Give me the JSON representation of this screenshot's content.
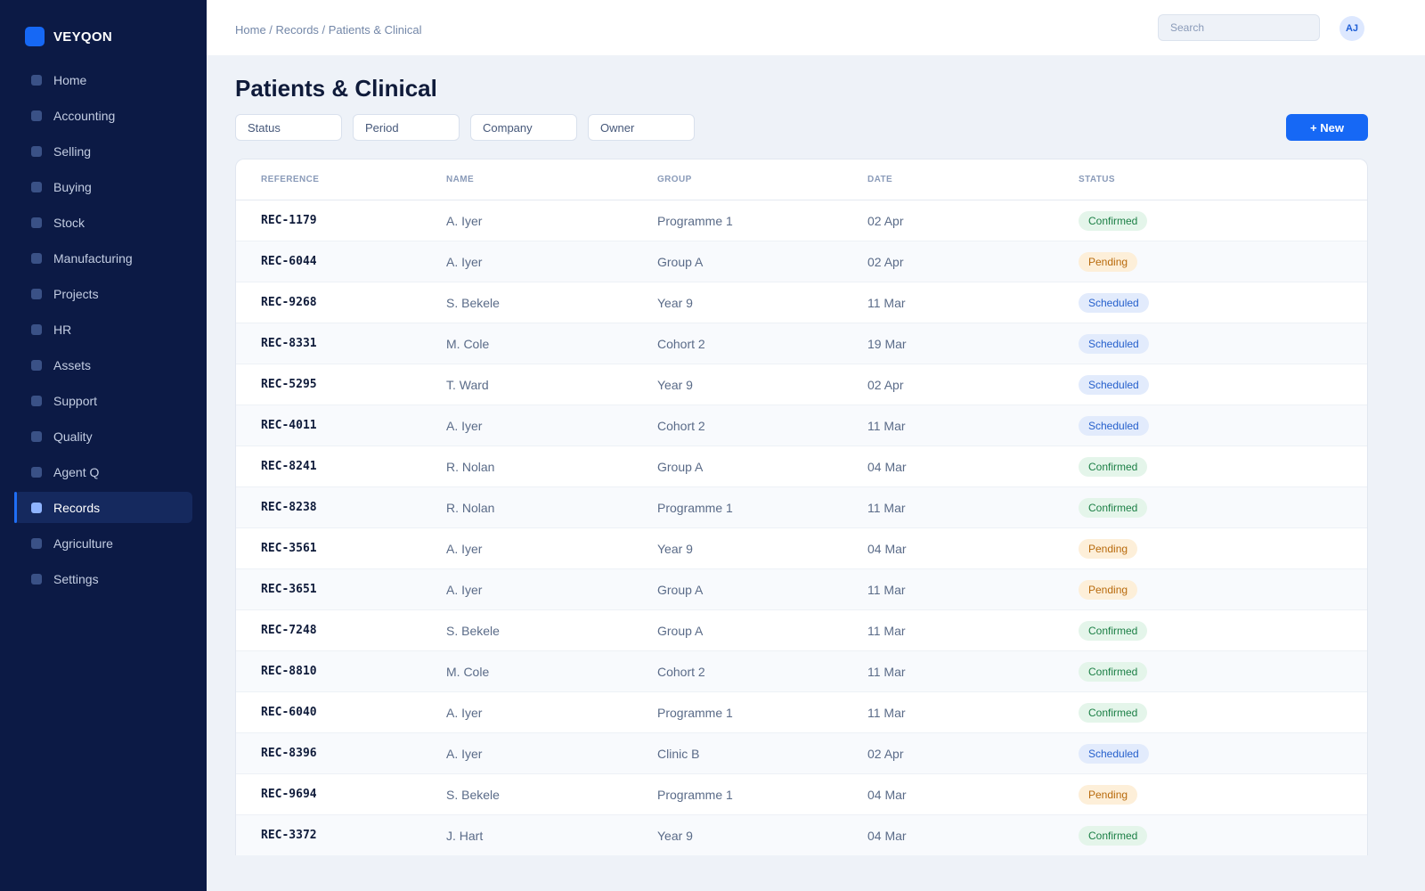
{
  "brand": {
    "name": "VEYQON"
  },
  "sidebar": {
    "items": [
      {
        "label": "Home",
        "active": false
      },
      {
        "label": "Accounting",
        "active": false
      },
      {
        "label": "Selling",
        "active": false
      },
      {
        "label": "Buying",
        "active": false
      },
      {
        "label": "Stock",
        "active": false
      },
      {
        "label": "Manufacturing",
        "active": false
      },
      {
        "label": "Projects",
        "active": false
      },
      {
        "label": "HR",
        "active": false
      },
      {
        "label": "Assets",
        "active": false
      },
      {
        "label": "Support",
        "active": false
      },
      {
        "label": "Quality",
        "active": false
      },
      {
        "label": "Agent Q",
        "active": false
      },
      {
        "label": "Records",
        "active": true
      },
      {
        "label": "Agriculture",
        "active": false
      },
      {
        "label": "Settings",
        "active": false
      }
    ]
  },
  "header": {
    "breadcrumb": "Home / Records / Patients & Clinical",
    "search": {
      "placeholder": "Search",
      "value": ""
    },
    "user_initials": "AJ"
  },
  "main": {
    "title": "Patients & Clinical",
    "filters": [
      {
        "label": "Status"
      },
      {
        "label": "Period"
      },
      {
        "label": "Company"
      },
      {
        "label": "Owner"
      }
    ],
    "new_button": "+ New",
    "table": {
      "columns": [
        "REFERENCE",
        "NAME",
        "GROUP",
        "DATE",
        "STATUS"
      ],
      "rows": [
        {
          "ref": "REC-1179",
          "name": "A. Iyer",
          "group": "Programme 1",
          "date": "02 Apr",
          "status": "Confirmed"
        },
        {
          "ref": "REC-6044",
          "name": "A. Iyer",
          "group": "Group A",
          "date": "02 Apr",
          "status": "Pending"
        },
        {
          "ref": "REC-9268",
          "name": "S. Bekele",
          "group": "Year 9",
          "date": "11 Mar",
          "status": "Scheduled"
        },
        {
          "ref": "REC-8331",
          "name": "M. Cole",
          "group": "Cohort 2",
          "date": "19 Mar",
          "status": "Scheduled"
        },
        {
          "ref": "REC-5295",
          "name": "T. Ward",
          "group": "Year 9",
          "date": "02 Apr",
          "status": "Scheduled"
        },
        {
          "ref": "REC-4011",
          "name": "A. Iyer",
          "group": "Cohort 2",
          "date": "11 Mar",
          "status": "Scheduled"
        },
        {
          "ref": "REC-8241",
          "name": "R. Nolan",
          "group": "Group A",
          "date": "04 Mar",
          "status": "Confirmed"
        },
        {
          "ref": "REC-8238",
          "name": "R. Nolan",
          "group": "Programme 1",
          "date": "11 Mar",
          "status": "Confirmed"
        },
        {
          "ref": "REC-3561",
          "name": "A. Iyer",
          "group": "Year 9",
          "date": "04 Mar",
          "status": "Pending"
        },
        {
          "ref": "REC-3651",
          "name": "A. Iyer",
          "group": "Group A",
          "date": "11 Mar",
          "status": "Pending"
        },
        {
          "ref": "REC-7248",
          "name": "S. Bekele",
          "group": "Group A",
          "date": "11 Mar",
          "status": "Confirmed"
        },
        {
          "ref": "REC-8810",
          "name": "M. Cole",
          "group": "Cohort 2",
          "date": "11 Mar",
          "status": "Confirmed"
        },
        {
          "ref": "REC-6040",
          "name": "A. Iyer",
          "group": "Programme 1",
          "date": "11 Mar",
          "status": "Confirmed"
        },
        {
          "ref": "REC-8396",
          "name": "A. Iyer",
          "group": "Clinic B",
          "date": "02 Apr",
          "status": "Scheduled"
        },
        {
          "ref": "REC-9694",
          "name": "S. Bekele",
          "group": "Programme 1",
          "date": "04 Mar",
          "status": "Pending"
        },
        {
          "ref": "REC-3372",
          "name": "J. Hart",
          "group": "Year 9",
          "date": "04 Mar",
          "status": "Confirmed"
        }
      ]
    }
  },
  "colors": {
    "sidebar_bg": "#0c1a45",
    "accent": "#1668f5",
    "page_bg": "#eef2f8",
    "status_confirmed": "#1b7f45",
    "status_pending": "#b86a0c",
    "status_scheduled": "#2660cc"
  }
}
